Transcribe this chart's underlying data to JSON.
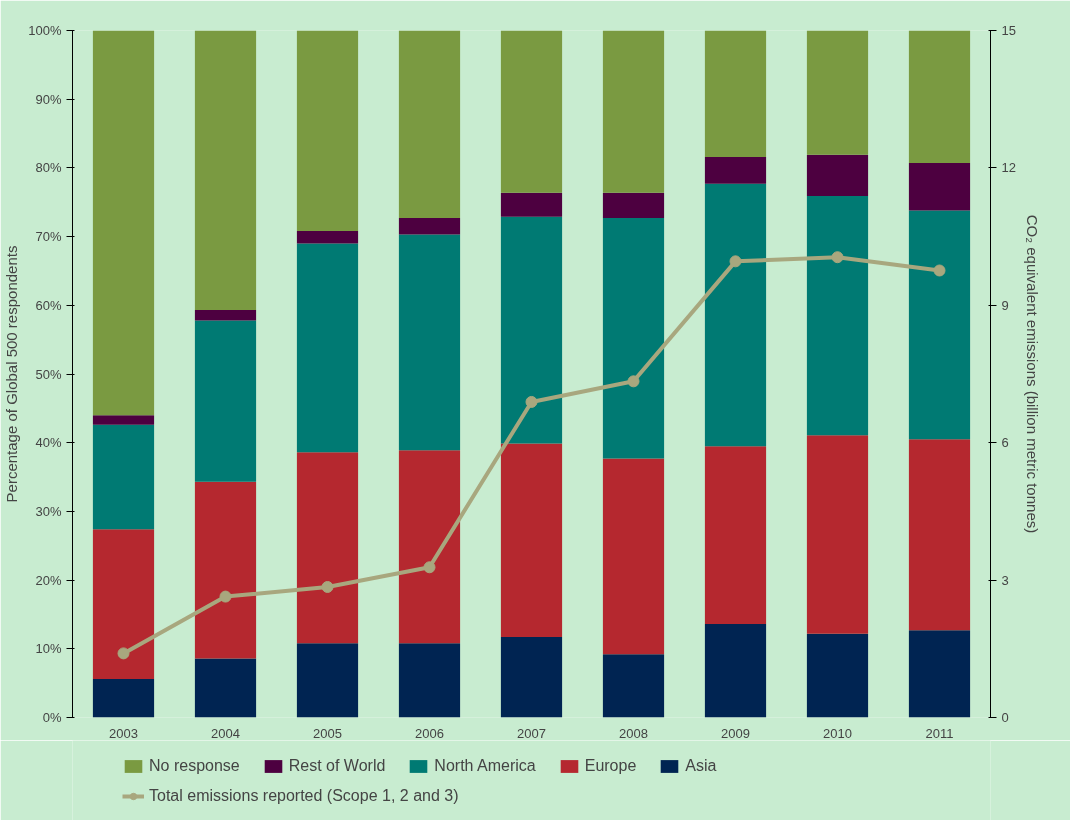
{
  "chart_data": {
    "type": "bar",
    "stacked": true,
    "categories": [
      "2003",
      "2004",
      "2005",
      "2006",
      "2007",
      "2008",
      "2009",
      "2010",
      "2011"
    ],
    "ylabel": "Percentage of Global 500 respondents",
    "y2label": "CO₂ equivalent emissions (billion metric tonnes)",
    "ylim": [
      0,
      100
    ],
    "yticks": [
      {
        "value": 0,
        "label": "0%"
      },
      {
        "value": 10,
        "label": "10%"
      },
      {
        "value": 20,
        "label": "20%"
      },
      {
        "value": 30,
        "label": "30%"
      },
      {
        "value": 40,
        "label": "40%"
      },
      {
        "value": 50,
        "label": "50%"
      },
      {
        "value": 60,
        "label": "60%"
      },
      {
        "value": 70,
        "label": "70%"
      },
      {
        "value": 80,
        "label": "80%"
      },
      {
        "value": 90,
        "label": "90%"
      },
      {
        "value": 100,
        "label": "100%"
      }
    ],
    "y2lim": [
      0,
      15
    ],
    "y2ticks": [
      0,
      3,
      6,
      9,
      12,
      15
    ],
    "grid": false,
    "legend": "bottom",
    "series": [
      {
        "name": "Asia",
        "color": "#002452",
        "values": [
          5.6,
          8.6,
          10.8,
          10.8,
          11.7,
          9.2,
          13.6,
          12.2,
          12.7
        ]
      },
      {
        "name": "Europe",
        "color": "#b5282f",
        "values": [
          21.8,
          25.7,
          27.8,
          28.1,
          28.2,
          28.5,
          25.9,
          28.9,
          27.8
        ]
      },
      {
        "name": "North America",
        "color": "#007a73",
        "values": [
          15.2,
          23.5,
          30.4,
          31.4,
          33.0,
          35.0,
          38.2,
          34.8,
          33.3
        ]
      },
      {
        "name": "Rest of World",
        "color": "#4d0040",
        "values": [
          1.4,
          1.5,
          1.8,
          2.4,
          3.5,
          3.7,
          3.9,
          6.0,
          6.9
        ]
      },
      {
        "name": "No response",
        "color": "#7a9a41",
        "values": [
          56.0,
          40.7,
          29.2,
          27.3,
          23.6,
          23.6,
          18.4,
          18.1,
          19.3
        ]
      },
      {
        "name": "Total emissions reported (Scope 1, 2 and 3)",
        "type": "line",
        "axis": "y2",
        "color": "#a8a77e",
        "marker": "circle",
        "values": [
          1.4,
          2.64,
          2.85,
          3.28,
          6.89,
          7.34,
          9.96,
          10.05,
          9.76
        ]
      }
    ]
  }
}
